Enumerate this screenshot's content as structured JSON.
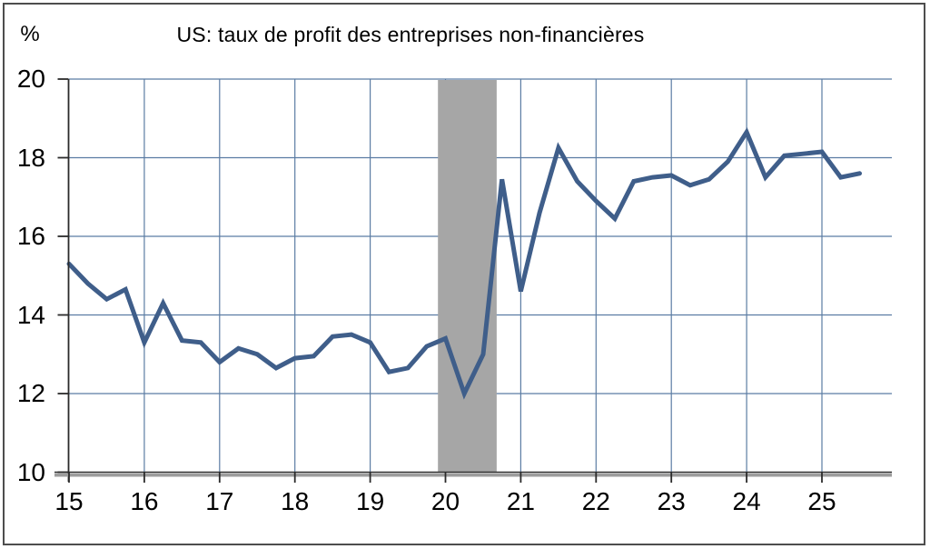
{
  "chart_data": {
    "type": "line",
    "title": "US: taux de profit des entreprises non-financières",
    "unit_label": "%",
    "ylim": [
      10,
      20
    ],
    "yticks": [
      20,
      18,
      16,
      14,
      12,
      10
    ],
    "x_tick_labels": [
      "15",
      "16",
      "17",
      "18",
      "19",
      "20",
      "21",
      "22",
      "23",
      "24",
      "25"
    ],
    "x_tick_years": [
      2015,
      2016,
      2017,
      2018,
      2019,
      2020,
      2021,
      2022,
      2023,
      2024,
      2025
    ],
    "xlim": [
      2015,
      2025.93
    ],
    "grid": true,
    "legend": "none",
    "recession_band": {
      "start": 2019.9,
      "end": 2020.68
    },
    "series": [
      {
        "name": "taux de profit des entreprises non-financières",
        "quarters": [
          "2015Q1",
          "2015Q2",
          "2015Q3",
          "2015Q4",
          "2016Q1",
          "2016Q2",
          "2016Q3",
          "2016Q4",
          "2017Q1",
          "2017Q2",
          "2017Q3",
          "2017Q4",
          "2018Q1",
          "2018Q2",
          "2018Q3",
          "2018Q4",
          "2019Q1",
          "2019Q2",
          "2019Q3",
          "2019Q4",
          "2020Q1",
          "2020Q2",
          "2020Q3",
          "2020Q4",
          "2021Q1",
          "2021Q2",
          "2021Q3",
          "2021Q4",
          "2022Q1",
          "2022Q2",
          "2022Q3",
          "2022Q4",
          "2023Q1",
          "2023Q2",
          "2023Q3",
          "2023Q4",
          "2024Q1",
          "2024Q2",
          "2024Q3",
          "2024Q4",
          "2025Q1",
          "2025Q2",
          "2025Q3"
        ],
        "values": [
          15.3,
          14.8,
          14.4,
          14.65,
          13.3,
          14.3,
          13.35,
          13.3,
          12.8,
          13.15,
          13.0,
          12.65,
          12.9,
          12.95,
          13.45,
          13.5,
          13.3,
          12.55,
          12.65,
          13.2,
          13.4,
          12.0,
          13.0,
          17.45,
          14.6,
          16.6,
          18.25,
          17.4,
          16.9,
          16.45,
          17.4,
          17.5,
          17.55,
          17.3,
          17.45,
          17.9,
          18.65,
          17.5,
          18.05,
          18.1,
          18.15,
          17.5,
          17.6
        ]
      }
    ]
  },
  "colors": {
    "line": "#3f5e8a",
    "gridline": "#5b7ca3",
    "band": "#a6a6a6",
    "axis": "#2b2b2b",
    "axis_shadow": "#9c9c9c",
    "border": "#4d4d4d",
    "text": "#000000"
  }
}
